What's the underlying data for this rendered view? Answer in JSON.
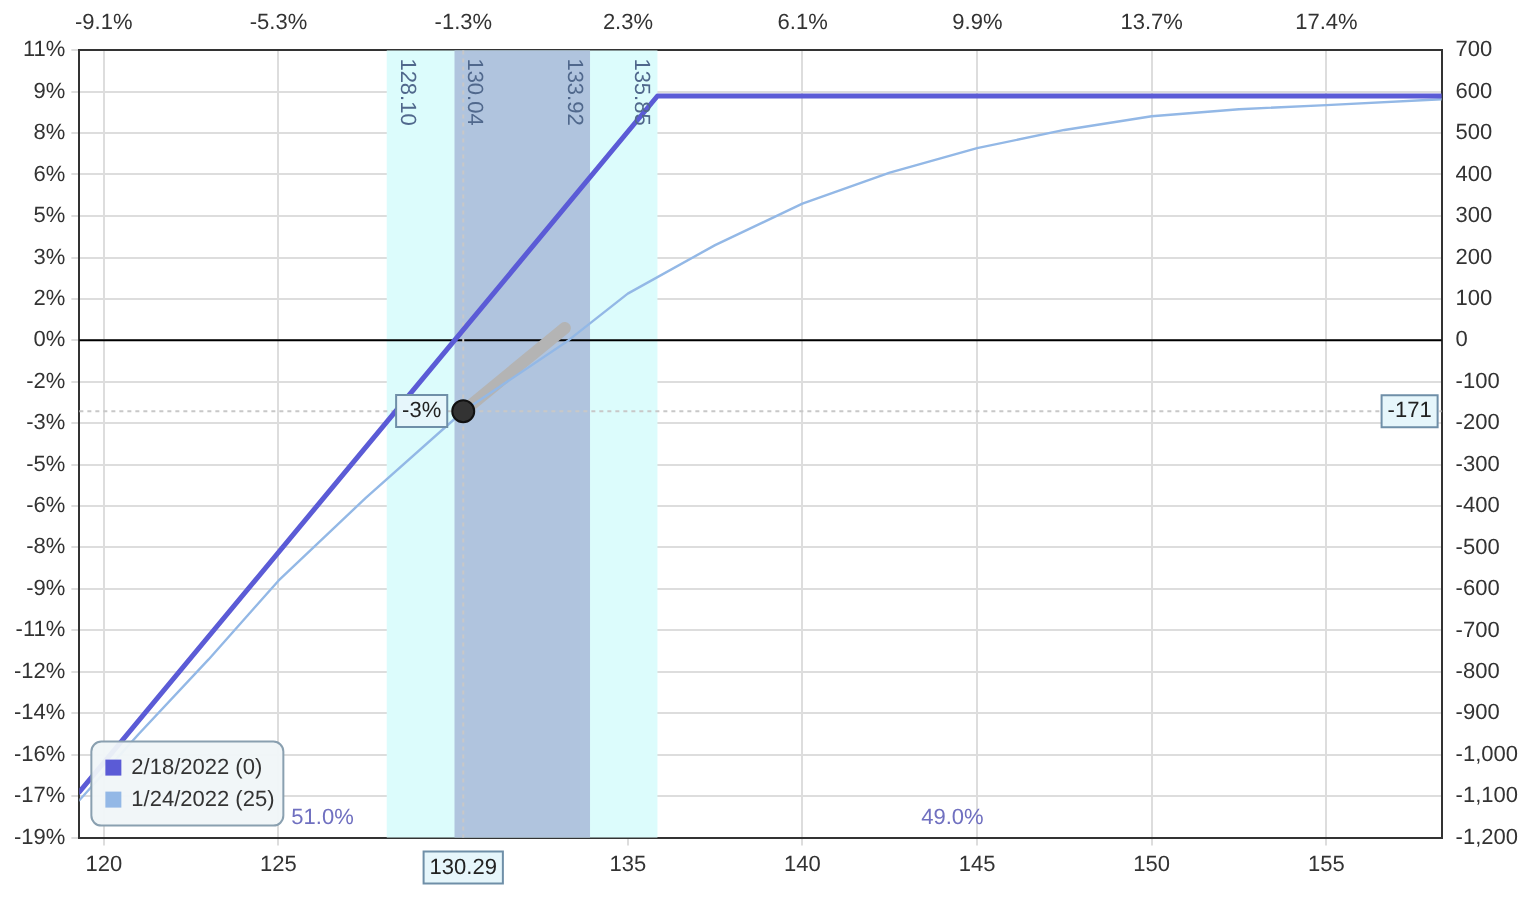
{
  "chart_data": {
    "type": "line",
    "xlim": [
      119.3,
      158.3
    ],
    "xticks": [
      120,
      125,
      135,
      140,
      145,
      150,
      155
    ],
    "x2lim": [
      -9.61,
      19.94
    ],
    "x2ticks": [
      {
        "value": -9.08,
        "label": "-9.1%"
      },
      {
        "value": -5.29,
        "label": "-5.3%"
      },
      {
        "value": -1.28,
        "label": "-1.3%"
      },
      {
        "value": 2.29,
        "label": "2.3%"
      },
      {
        "value": 6.08,
        "label": "6.1%"
      },
      {
        "value": 9.87,
        "label": "9.9%"
      },
      {
        "value": 13.65,
        "label": "13.7%"
      },
      {
        "value": 17.44,
        "label": "17.4%"
      }
    ],
    "ylim": [
      -18.68,
      10.89
    ],
    "yticks": [
      {
        "value": 10.89,
        "label": "11%"
      },
      {
        "value": 9.34,
        "label": "9%"
      },
      {
        "value": 7.78,
        "label": "8%"
      },
      {
        "value": 6.23,
        "label": "6%"
      },
      {
        "value": 4.67,
        "label": "5%"
      },
      {
        "value": 3.11,
        "label": "3%"
      },
      {
        "value": 1.56,
        "label": "2%"
      },
      {
        "value": 0,
        "label": "0%"
      },
      {
        "value": -1.56,
        "label": "-2%"
      },
      {
        "value": -3.11,
        "label": "-3%"
      },
      {
        "value": -4.67,
        "label": "-5%"
      },
      {
        "value": -6.23,
        "label": "-6%"
      },
      {
        "value": -7.78,
        "label": "-8%"
      },
      {
        "value": -9.34,
        "label": "-9%"
      },
      {
        "value": -10.89,
        "label": "-11%"
      },
      {
        "value": -12.45,
        "label": "-12%"
      },
      {
        "value": -14.01,
        "label": "-14%"
      },
      {
        "value": -15.56,
        "label": "-16%"
      },
      {
        "value": -17.12,
        "label": "-17%"
      },
      {
        "value": -18.68,
        "label": "-19%"
      }
    ],
    "y2lim": [
      -1200,
      700
    ],
    "y2ticks": [
      700,
      600,
      500,
      400,
      300,
      200,
      100,
      0,
      -100,
      -200,
      -300,
      -400,
      -500,
      -600,
      -700,
      -800,
      -900,
      {
        "value": -1000,
        "label": "-1,000"
      },
      {
        "value": -1100,
        "label": "-1,100"
      },
      {
        "value": -1200,
        "label": "-1,200"
      }
    ],
    "grid": true,
    "legend": "bottom left",
    "series": [
      {
        "name": "2/18/2022 (0)",
        "color": "#5b5bd6",
        "axis": "y2",
        "x": [
          119.3,
          130.04,
          135.85,
          158.3
        ],
        "values": [
          -1090,
          0,
          590,
          590
        ]
      },
      {
        "name": "1/24/2022 (25)",
        "color": "#93b8e6",
        "axis": "y2",
        "x": [
          119.3,
          121,
          123,
          125,
          127.5,
          130.29,
          133.3,
          135,
          137.5,
          140,
          142.5,
          145,
          147.5,
          150,
          152.5,
          155,
          158.3
        ],
        "values": [
          -1110,
          -950,
          -770,
          -580,
          -380,
          -171,
          0,
          113,
          230,
          330,
          405,
          464,
          508,
          541,
          558,
          568,
          582
        ]
      },
      {
        "type": "line",
        "color": "#b4b4b4",
        "axis": "y2",
        "x": [
          130.29,
          133.2
        ],
        "values": [
          -171,
          30
        ]
      },
      {
        "type": "scatter",
        "color": "#333333",
        "axis": "y2",
        "x": [
          130.29
        ],
        "values": [
          -171
        ]
      }
    ],
    "bands": [
      {
        "axis": "x",
        "from": 128.1,
        "to": 135.85,
        "label": "128.10",
        "color": "#dcfcfc"
      },
      {
        "axis": "x",
        "from": 130.04,
        "to": 133.92,
        "label": "130.04",
        "color": "#b0c4de"
      }
    ],
    "ref_lines": [
      {
        "axis": "y",
        "value": 0,
        "color": "#000000"
      },
      {
        "axis": "x",
        "value": 130.29,
        "label": "130.29",
        "color": "#c8c8c8",
        "line_style": "dotted"
      },
      {
        "axis": "y2",
        "value": -171,
        "label": "-171",
        "color": "#c8c8c8",
        "line_style": "dotted"
      }
    ],
    "annotations": [
      {
        "text": "-3%",
        "x": 130.29,
        "y": -2.66
      },
      {
        "text": "133.92",
        "x": 133.92,
        "y": 10.5
      },
      {
        "text": "135.85",
        "x": 135.85,
        "y": 10.5
      },
      "51.0%",
      "49.0%"
    ]
  }
}
